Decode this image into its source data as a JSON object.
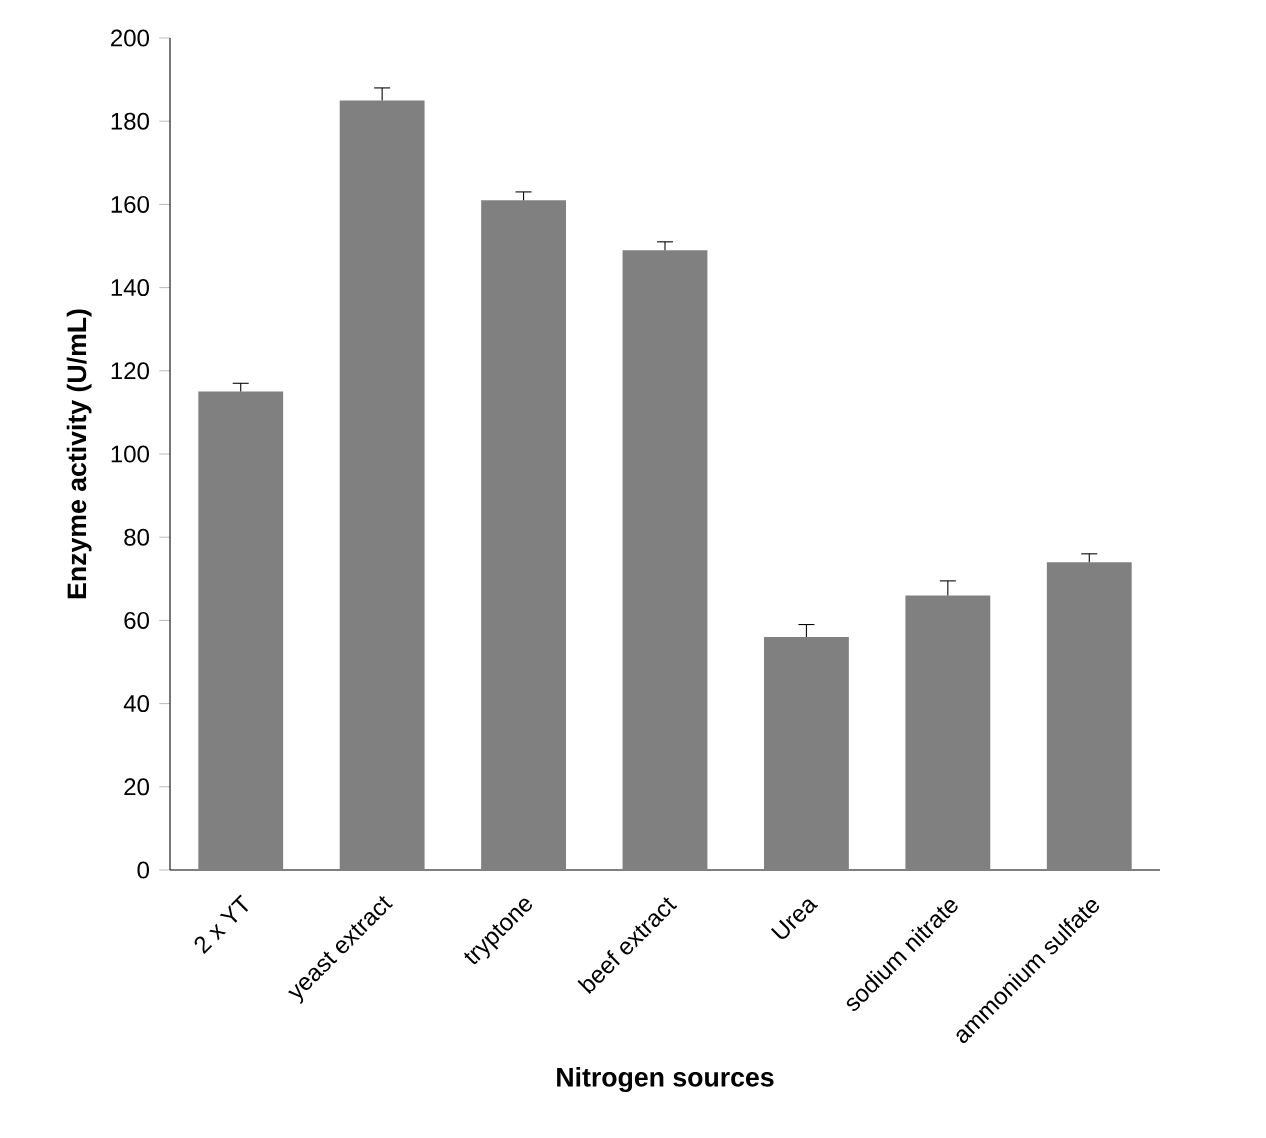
{
  "chart_data": {
    "type": "bar",
    "xlabel": "Nitrogen sources",
    "ylabel": "Enzyme activity (U/mL)",
    "categories": [
      "2 x YT",
      "yeast extract",
      "tryptone",
      "beef extract",
      "Urea",
      "sodium nitrate",
      "ammonium sulfate"
    ],
    "values": [
      115,
      185,
      161,
      149,
      56,
      66,
      74
    ],
    "errors": [
      2,
      3,
      2,
      2,
      3,
      3.5,
      2
    ],
    "color": "#808080",
    "ylim": [
      0,
      200
    ],
    "yticks": [
      0,
      20,
      40,
      60,
      80,
      100,
      120,
      140,
      160,
      180,
      200
    ]
  }
}
